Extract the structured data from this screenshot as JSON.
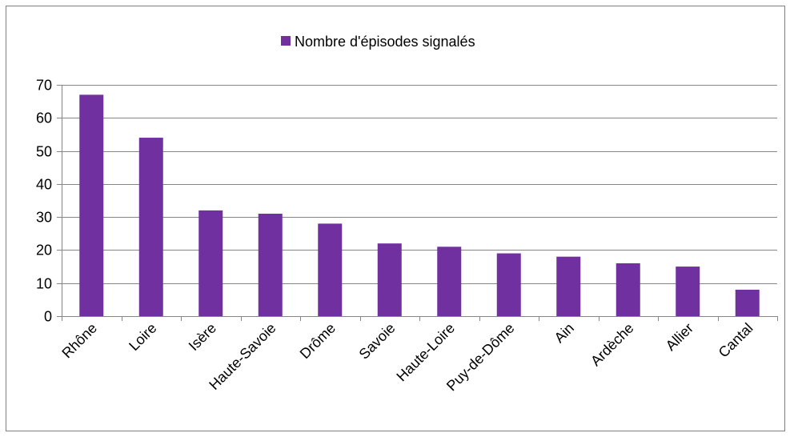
{
  "chart_data": {
    "type": "bar",
    "title": "",
    "xlabel": "",
    "ylabel": "",
    "categories": [
      "Rhône",
      "Loire",
      "Isère",
      "Haute-Savoie",
      "Drôme",
      "Savoie",
      "Haute-Loire",
      "Puy-de-Dôme",
      "Ain",
      "Ardèche",
      "Allier",
      "Cantal"
    ],
    "series": [
      {
        "name": "Nombre d'épisodes signalés",
        "values": [
          67,
          54,
          32,
          31,
          28,
          22,
          21,
          19,
          18,
          16,
          15,
          8
        ],
        "color": "#7030a0"
      }
    ],
    "ylim": [
      0,
      70
    ],
    "yticks": [
      0,
      10,
      20,
      30,
      40,
      50,
      60,
      70
    ],
    "grid": true,
    "legend_position": "top"
  }
}
